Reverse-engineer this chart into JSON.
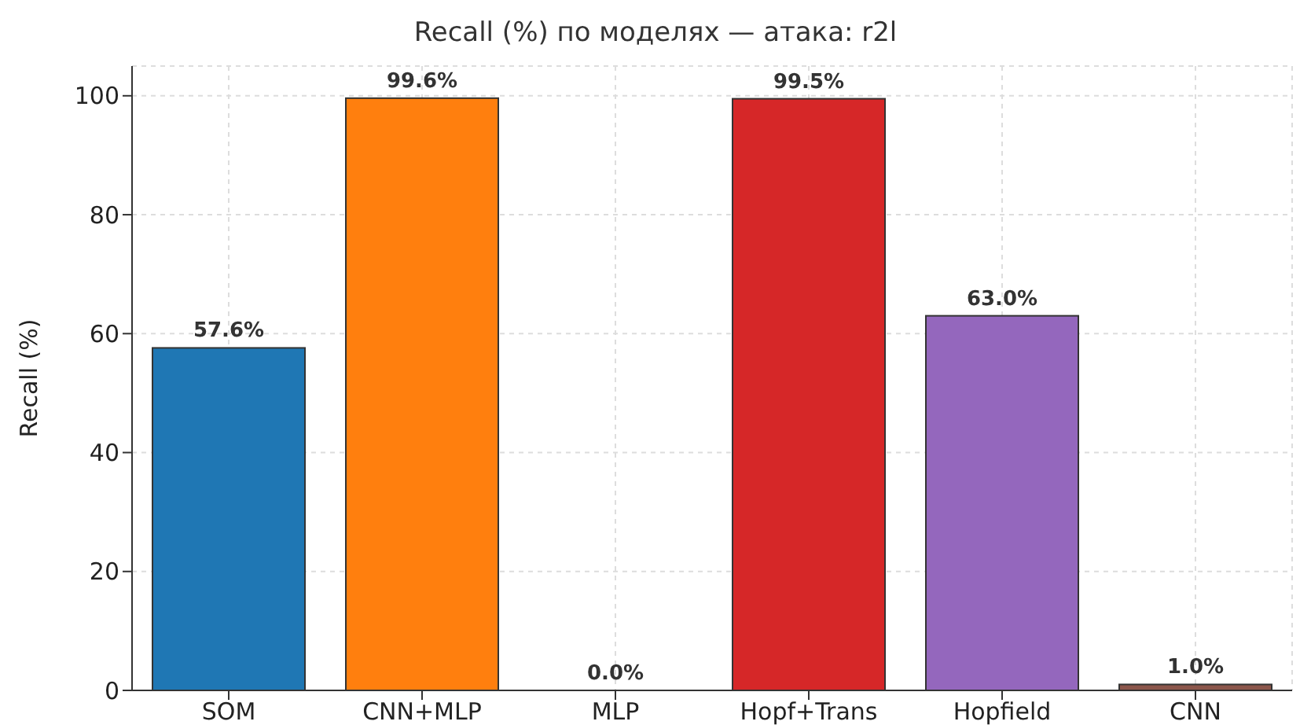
{
  "chart_data": {
    "type": "bar",
    "title": "Recall (%) по моделях — атака: r2l",
    "ylabel": "Recall (%)",
    "categories": [
      "SOM",
      "CNN+MLP",
      "MLP",
      "Hopf+Trans",
      "Hopfield",
      "CNN"
    ],
    "values": [
      57.6,
      99.6,
      0.0,
      99.5,
      63.0,
      1.0
    ],
    "value_labels": [
      "57.6%",
      "99.6%",
      "0.0%",
      "99.5%",
      "63.0%",
      "1.0%"
    ],
    "colors": [
      "#1f77b4",
      "#ff7f0e",
      "#2ca02c",
      "#d62728",
      "#9467bd",
      "#8c564b"
    ],
    "ylim": [
      0,
      105
    ],
    "yticks": [
      0,
      20,
      40,
      60,
      80,
      100
    ],
    "grid": true
  }
}
